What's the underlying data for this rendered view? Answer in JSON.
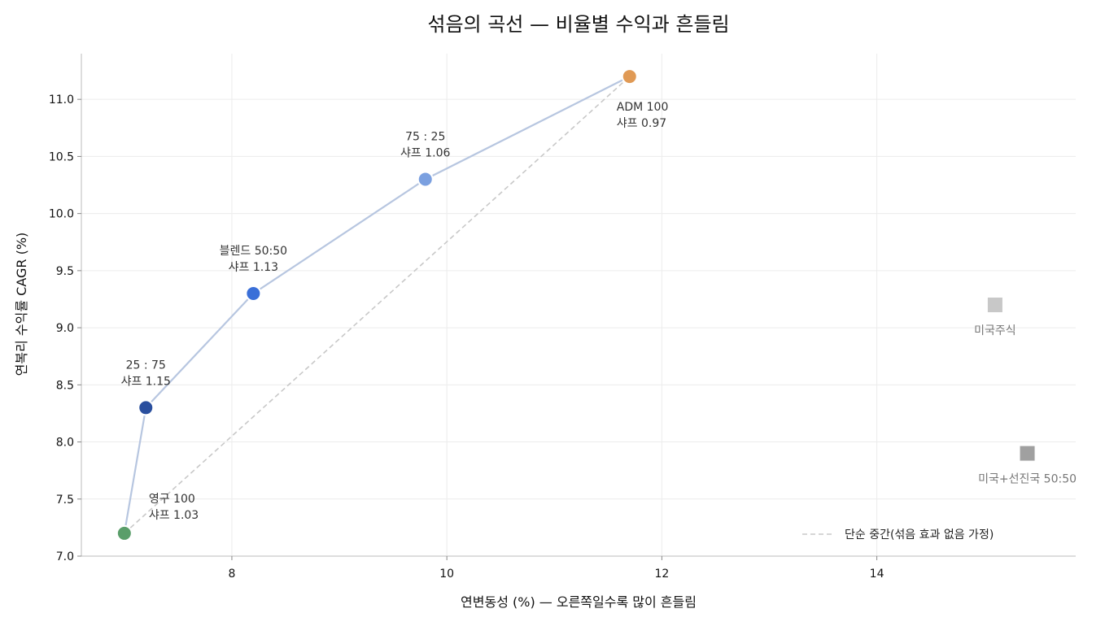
{
  "chart_data": {
    "type": "scatter",
    "title": "섞음의 곡선 — 비율별 수익과 흔들림",
    "xlabel": "연변동성 (%) — 오른쪽일수록 많이 흔들림",
    "ylabel": "연복리 수익률 CAGR (%)",
    "xlim": [
      6.6,
      15.85
    ],
    "ylim": [
      7.0,
      11.4
    ],
    "x_ticks": [
      8,
      10,
      12,
      14
    ],
    "y_ticks": [
      7.0,
      7.5,
      8.0,
      8.5,
      9.0,
      9.5,
      10.0,
      10.5,
      11.0
    ],
    "grid": true,
    "curve_color": "#b7c6e0",
    "series": [
      {
        "points": [
          {
            "x": 7.0,
            "y": 7.2,
            "line1": "영구 100",
            "line2": "샤프 1.03",
            "color": "#5a9e6a"
          },
          {
            "x": 7.2,
            "y": 8.3,
            "line1": "25 : 75",
            "line2": "샤프 1.15",
            "color": "#2a4f9e"
          },
          {
            "x": 8.2,
            "y": 9.3,
            "line1": "블렌드 50:50",
            "line2": "샤프 1.13",
            "color": "#3a6fd8"
          },
          {
            "x": 9.8,
            "y": 10.3,
            "line1": "75 : 25",
            "line2": "샤프 1.06",
            "color": "#7ba0e0"
          },
          {
            "x": 11.7,
            "y": 11.2,
            "line1": "ADM 100",
            "line2": "샤프 0.97",
            "color": "#e09a55"
          }
        ]
      }
    ],
    "reference_points": [
      {
        "x": 15.1,
        "y": 9.2,
        "label": "미국주식",
        "color": "#c8c8c8"
      },
      {
        "x": 15.4,
        "y": 7.9,
        "label": "미국+선진국 50:50",
        "color": "#a0a0a0"
      }
    ],
    "dashed_line": {
      "from": {
        "x": 7.0,
        "y": 7.2
      },
      "to": {
        "x": 11.7,
        "y": 11.2
      },
      "color": "#c8c8c8"
    },
    "legend": {
      "position": "bottom-right",
      "entries": [
        "단순 중간(섞음 효과 없음 가정)"
      ]
    }
  }
}
